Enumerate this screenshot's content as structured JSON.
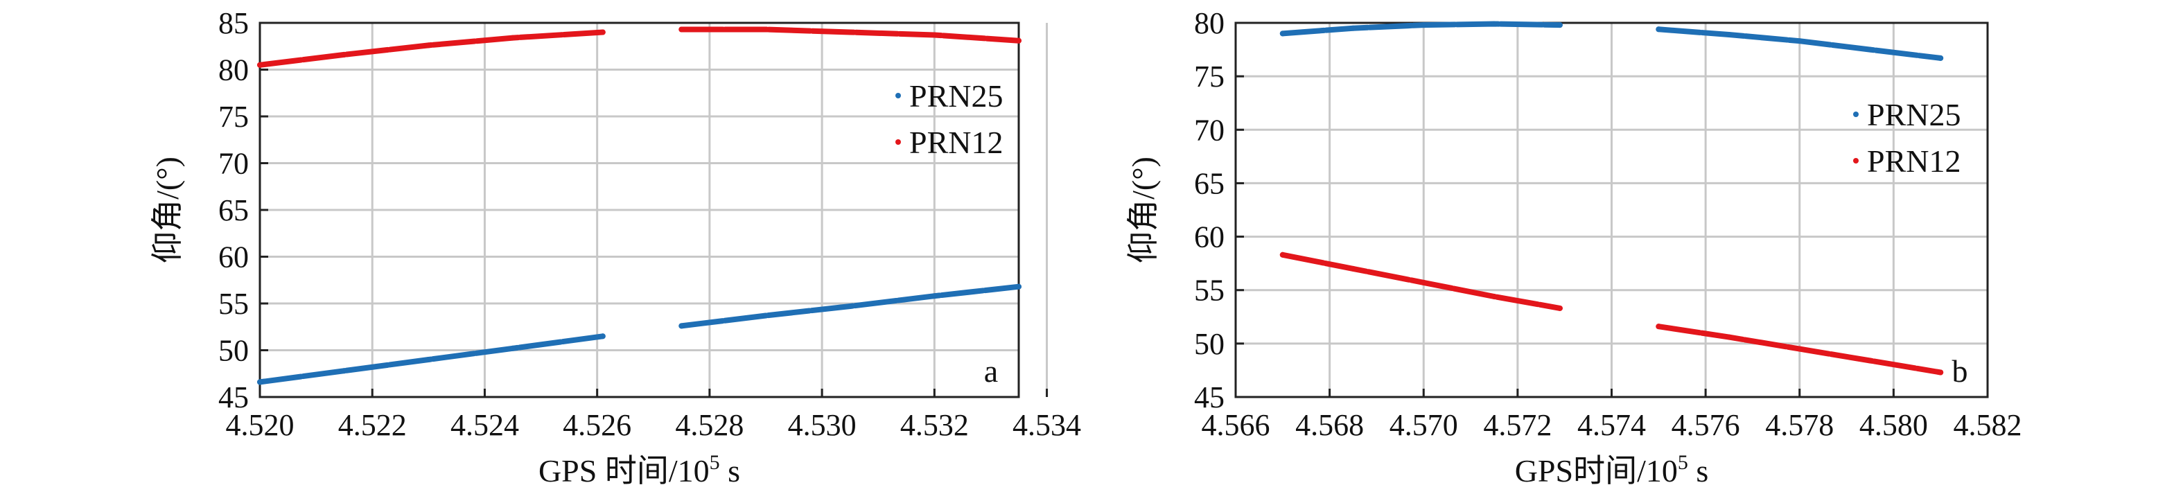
{
  "chart_data": [
    {
      "type": "scatter",
      "panel_label": "a",
      "xlabel": "GPS 时间/10",
      "xlabel_exp": "5",
      "xlabel_unit": " s",
      "ylabel": "仰角/(°)",
      "xlim": [
        4.52,
        4.5335
      ],
      "ylim": [
        45,
        85
      ],
      "xticks": [
        "4.520",
        "4.522",
        "4.524",
        "4.526",
        "4.528",
        "4.530",
        "4.532",
        "4.534"
      ],
      "yticks": [
        "45",
        "50",
        "55",
        "60",
        "65",
        "70",
        "75",
        "80",
        "85"
      ],
      "grid": true,
      "legend_position": "right",
      "series": [
        {
          "name": "PRN25",
          "color": "#1f6fb5",
          "segments": [
            {
              "x": [
                4.52,
                4.5215,
                4.523,
                4.5245,
                4.5261
              ],
              "y": [
                46.6,
                47.8,
                49.0,
                50.2,
                51.5
              ]
            },
            {
              "x": [
                4.5275,
                4.529,
                4.5305,
                4.532,
                4.5335
              ],
              "y": [
                52.6,
                53.7,
                54.7,
                55.8,
                56.8
              ]
            }
          ]
        },
        {
          "name": "PRN12",
          "color": "#e3161b",
          "segments": [
            {
              "x": [
                4.52,
                4.5215,
                4.523,
                4.5245,
                4.5261
              ],
              "y": [
                80.5,
                81.6,
                82.6,
                83.4,
                84.0
              ]
            },
            {
              "x": [
                4.5275,
                4.529,
                4.5305,
                4.532,
                4.5335
              ],
              "y": [
                84.3,
                84.3,
                84.0,
                83.7,
                83.1
              ]
            }
          ]
        }
      ]
    },
    {
      "type": "scatter",
      "panel_label": "b",
      "xlabel": "GPS时间/10",
      "xlabel_exp": "5",
      "xlabel_unit": " s",
      "ylabel": "仰角/(°)",
      "xlim": [
        4.566,
        4.582
      ],
      "ylim": [
        45,
        80
      ],
      "xticks": [
        "4.566",
        "4.568",
        "4.570",
        "4.572",
        "4.574",
        "4.576",
        "4.578",
        "4.580",
        "4.582"
      ],
      "yticks": [
        "45",
        "50",
        "55",
        "60",
        "65",
        "70",
        "75",
        "80"
      ],
      "grid": true,
      "legend_position": "right",
      "series": [
        {
          "name": "PRN25",
          "color": "#1f6fb5",
          "segments": [
            {
              "x": [
                4.567,
                4.5685,
                4.57,
                4.5715,
                4.5729
              ],
              "y": [
                79.0,
                79.5,
                79.8,
                79.9,
                79.8
              ]
            },
            {
              "x": [
                4.575,
                4.5765,
                4.578,
                4.5795,
                4.581
              ],
              "y": [
                79.4,
                78.9,
                78.3,
                77.5,
                76.7
              ]
            }
          ]
        },
        {
          "name": "PRN12",
          "color": "#e3161b",
          "segments": [
            {
              "x": [
                4.567,
                4.5685,
                4.57,
                4.5715,
                4.5729
              ],
              "y": [
                58.3,
                57.0,
                55.7,
                54.4,
                53.3
              ]
            },
            {
              "x": [
                4.575,
                4.5765,
                4.578,
                4.5795,
                4.581
              ],
              "y": [
                51.6,
                50.6,
                49.5,
                48.4,
                47.3
              ]
            }
          ]
        }
      ]
    }
  ]
}
